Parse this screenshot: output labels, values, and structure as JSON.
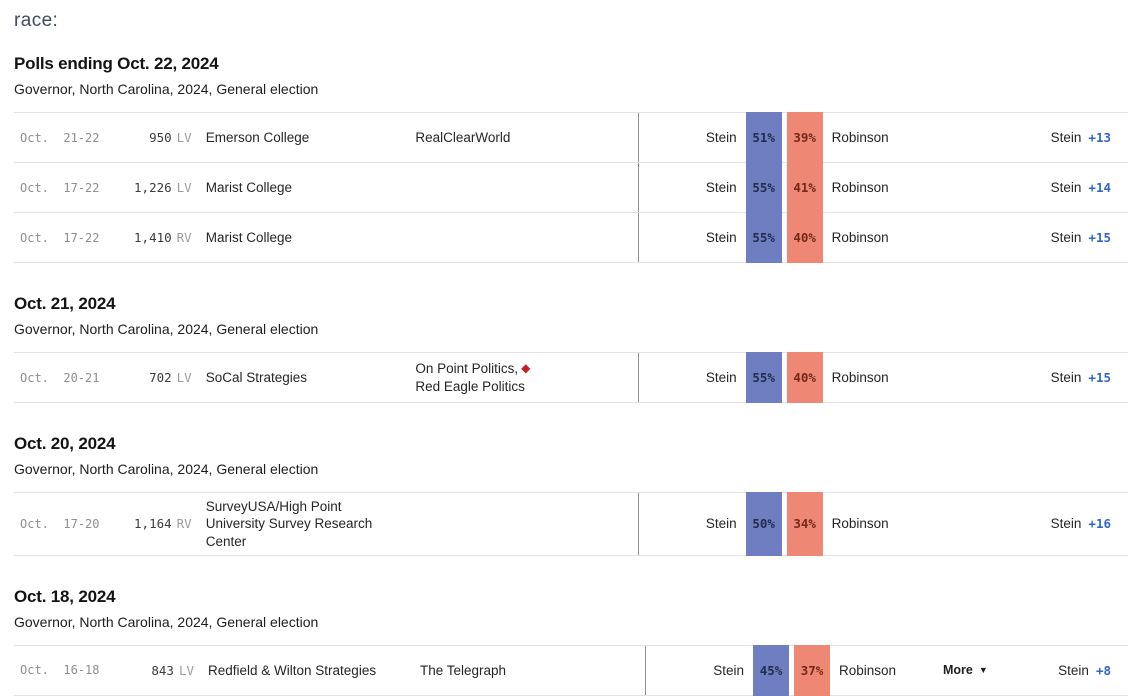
{
  "header": {
    "race_label": "race:"
  },
  "colors": {
    "dem_band": "#6f7ec1",
    "rep_band": "#ee8773",
    "dem_band_text": "#222d4e",
    "rep_band_text": "#74291a",
    "margin_blue": "#3366cc",
    "diamond_red": "#c22127"
  },
  "more_button": {
    "label": "More",
    "caret": "▼"
  },
  "sections": [
    {
      "title": "Polls ending Oct. 22, 2024",
      "subtitle": "Governor, North Carolina, 2024, General election",
      "rows": [
        {
          "dates": "Oct.  21-22",
          "sample": "950",
          "sample_suffix": "LV",
          "pollster": "Emerson College",
          "sponsor_pre": "RealClearWorld",
          "sponsor_diamond": false,
          "sponsor_post": "",
          "dem": "Stein",
          "dem_pct": "51%",
          "rep_pct": "39%",
          "rep": "Robinson",
          "leader": "Stein",
          "margin": "+13",
          "more": false
        },
        {
          "dates": "Oct.  17-22",
          "sample": "1,226",
          "sample_suffix": "LV",
          "pollster": "Marist College",
          "sponsor_pre": "",
          "sponsor_diamond": false,
          "sponsor_post": "",
          "dem": "Stein",
          "dem_pct": "55%",
          "rep_pct": "41%",
          "rep": "Robinson",
          "leader": "Stein",
          "margin": "+14",
          "more": false
        },
        {
          "dates": "Oct.  17-22",
          "sample": "1,410",
          "sample_suffix": "RV",
          "pollster": "Marist College",
          "sponsor_pre": "",
          "sponsor_diamond": false,
          "sponsor_post": "",
          "dem": "Stein",
          "dem_pct": "55%",
          "rep_pct": "40%",
          "rep": "Robinson",
          "leader": "Stein",
          "margin": "+15",
          "more": false
        }
      ]
    },
    {
      "title": "Oct. 21, 2024",
      "subtitle": "Governor, North Carolina, 2024, General election",
      "rows": [
        {
          "dates": "Oct.  20-21",
          "sample": "702",
          "sample_suffix": "LV",
          "pollster": "SoCal Strategies",
          "sponsor_pre": "On Point Politics, ",
          "sponsor_diamond": true,
          "sponsor_post": "Red Eagle Politics",
          "dem": "Stein",
          "dem_pct": "55%",
          "rep_pct": "40%",
          "rep": "Robinson",
          "leader": "Stein",
          "margin": "+15",
          "more": false
        }
      ]
    },
    {
      "title": "Oct. 20, 2024",
      "subtitle": "Governor, North Carolina, 2024, General election",
      "rows": [
        {
          "dates": "Oct.  17-20",
          "sample": "1,164",
          "sample_suffix": "RV",
          "pollster": "SurveyUSA/High Point University Survey Research Center",
          "sponsor_pre": "",
          "sponsor_diamond": false,
          "sponsor_post": "",
          "dem": "Stein",
          "dem_pct": "50%",
          "rep_pct": "34%",
          "rep": "Robinson",
          "leader": "Stein",
          "margin": "+16",
          "more": false
        }
      ]
    },
    {
      "title": "Oct. 18, 2024",
      "subtitle": "Governor, North Carolina, 2024, General election",
      "rows": [
        {
          "dates": "Oct.  16-18",
          "sample": "843",
          "sample_suffix": "LV",
          "pollster": "Redfield & Wilton Strategies",
          "sponsor_pre": "The Telegraph",
          "sponsor_diamond": false,
          "sponsor_post": "",
          "dem": "Stein",
          "dem_pct": "45%",
          "rep_pct": "37%",
          "rep": "Robinson",
          "leader": "Stein",
          "margin": "+8",
          "more": true
        }
      ]
    }
  ]
}
